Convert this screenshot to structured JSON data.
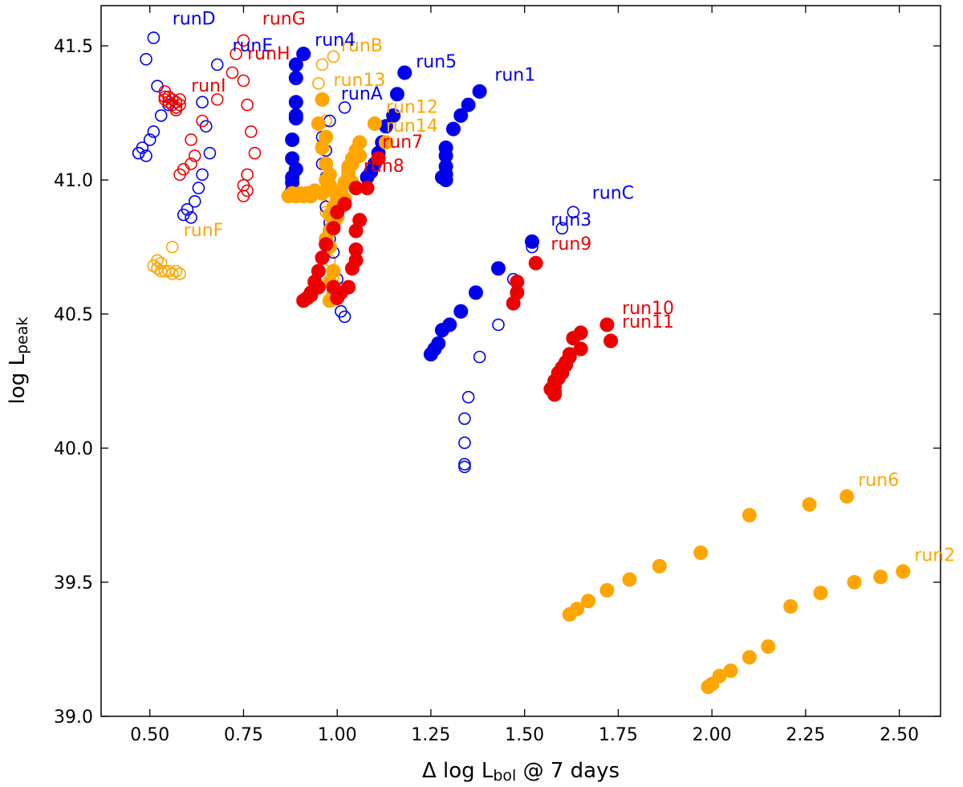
{
  "chart_data": {
    "type": "scatter",
    "title": "",
    "xlabel": {
      "prefix": "Δ log L",
      "sub": "bol",
      "suffix": " @ 7 days"
    },
    "ylabel": {
      "prefix": "log L",
      "sub": "peak"
    },
    "xlim": [
      0.37,
      2.61
    ],
    "ylim": [
      39.0,
      41.65
    ],
    "xticks": [
      "0.50",
      "0.75",
      "1.00",
      "1.25",
      "1.50",
      "1.75",
      "2.00",
      "2.25",
      "2.50"
    ],
    "yticks": [
      "39.0",
      "39.5",
      "40.0",
      "40.5",
      "41.0",
      "41.5"
    ],
    "colors": {
      "blue": "#0000ee",
      "red": "#ee0000",
      "orange": "#ffa500"
    },
    "series": [
      {
        "name": "runD",
        "color": "blue",
        "filled": false,
        "label_at": [
          0.56,
          41.58
        ],
        "x": [
          0.51,
          0.49,
          0.52,
          0.55,
          0.53,
          0.51,
          0.5,
          0.48,
          0.47,
          0.49,
          0.47
        ],
        "y": [
          41.53,
          41.45,
          41.35,
          41.28,
          41.24,
          41.18,
          41.15,
          41.12,
          41.1,
          41.09,
          41.1
        ]
      },
      {
        "name": "runE",
        "color": "blue",
        "filled": false,
        "label_at": [
          0.72,
          41.48
        ],
        "x": [
          0.68,
          0.64,
          0.65,
          0.66,
          0.64,
          0.63,
          0.62,
          0.6,
          0.59,
          0.61
        ],
        "y": [
          41.43,
          41.29,
          41.2,
          41.1,
          41.02,
          40.97,
          40.92,
          40.89,
          40.87,
          40.86
        ]
      },
      {
        "name": "runG",
        "color": "red",
        "filled": false,
        "label_at": [
          0.8,
          41.58
        ],
        "x": [
          0.75,
          0.73,
          0.72,
          0.75,
          0.76,
          0.77,
          0.78,
          0.76,
          0.75,
          0.76,
          0.75
        ],
        "y": [
          41.52,
          41.47,
          41.4,
          41.37,
          41.28,
          41.18,
          41.1,
          41.02,
          40.98,
          40.96,
          40.94
        ]
      },
      {
        "name": "runH",
        "color": "red",
        "filled": false,
        "label_at": [
          0.76,
          41.45
        ],
        "x": [
          0.68,
          0.64,
          0.61,
          0.62,
          0.61,
          0.59,
          0.58
        ],
        "y": [
          41.3,
          41.22,
          41.15,
          41.09,
          41.06,
          41.04,
          41.02
        ]
      },
      {
        "name": "runI",
        "color": "red",
        "filled": false,
        "label_at": [
          0.61,
          41.33
        ],
        "x": [
          0.54,
          0.55,
          0.54,
          0.56,
          0.57,
          0.58,
          0.58,
          0.57,
          0.56,
          0.55,
          0.54,
          0.57
        ],
        "y": [
          41.33,
          41.31,
          41.3,
          41.3,
          41.29,
          41.3,
          41.28,
          41.27,
          41.28,
          41.29,
          41.31,
          41.26
        ]
      },
      {
        "name": "runF",
        "color": "orange",
        "filled": false,
        "label_at": [
          0.59,
          40.79
        ],
        "x": [
          0.56,
          0.52,
          0.53,
          0.51,
          0.52,
          0.53,
          0.54,
          0.55,
          0.56,
          0.57,
          0.58
        ],
        "y": [
          40.75,
          40.7,
          40.69,
          40.68,
          40.67,
          40.66,
          40.66,
          40.66,
          40.65,
          40.66,
          40.65
        ]
      },
      {
        "name": "runB",
        "color": "orange",
        "filled": false,
        "label_at": [
          1.01,
          41.48
        ],
        "x": [
          0.99,
          0.96,
          0.95,
          0.96,
          0.97,
          0.96,
          0.97,
          0.97,
          0.98,
          0.97,
          0.98,
          0.97,
          0.98,
          0.99,
          1.0
        ],
        "y": [
          41.46,
          41.43,
          41.36,
          41.3,
          41.22,
          41.13,
          41.06,
          41.0,
          40.94,
          40.88,
          40.82,
          40.76,
          40.7,
          40.64,
          40.6
        ]
      },
      {
        "name": "runA",
        "color": "blue",
        "filled": false,
        "label_at": [
          1.01,
          41.3
        ],
        "x": [
          1.02,
          0.98,
          0.96,
          0.97,
          0.96,
          0.97,
          0.96,
          0.97,
          0.98,
          0.98,
          0.99,
          1.0,
          1.01,
          1.02
        ],
        "y": [
          41.27,
          41.22,
          41.16,
          41.11,
          41.06,
          41.01,
          40.95,
          40.9,
          40.84,
          40.78,
          40.73,
          40.63,
          40.51,
          40.49
        ]
      },
      {
        "name": "run4",
        "color": "blue",
        "filled": true,
        "label_at": [
          0.94,
          41.5
        ],
        "x": [
          0.91,
          0.89,
          0.89,
          0.89,
          0.89,
          0.88,
          0.88,
          0.89,
          0.88,
          0.88,
          0.88,
          0.89
        ],
        "y": [
          41.47,
          41.43,
          41.38,
          41.29,
          41.23,
          41.15,
          41.08,
          41.04,
          40.99,
          40.96,
          41.01,
          41.24
        ]
      },
      {
        "name": "run5",
        "color": "blue",
        "filled": true,
        "label_at": [
          1.21,
          41.42
        ],
        "x": [
          1.18,
          1.16,
          1.15,
          1.13,
          1.12,
          1.11,
          1.1,
          1.09,
          1.08
        ],
        "y": [
          41.4,
          41.32,
          41.24,
          41.2,
          41.14,
          41.1,
          41.06,
          41.03,
          41.01
        ]
      },
      {
        "name": "run1",
        "color": "blue",
        "filled": true,
        "label_at": [
          1.42,
          41.37
        ],
        "x": [
          1.38,
          1.35,
          1.33,
          1.31,
          1.29,
          1.29,
          1.29,
          1.29,
          1.28,
          1.29
        ],
        "y": [
          41.33,
          41.28,
          41.24,
          41.19,
          41.12,
          41.09,
          41.05,
          41.02,
          41.01,
          41.0
        ]
      },
      {
        "name": "run3",
        "color": "blue",
        "filled": true,
        "label_at": [
          1.57,
          40.83
        ],
        "x": [
          1.52,
          1.43,
          1.37,
          1.33,
          1.3,
          1.28,
          1.27,
          1.26,
          1.25
        ],
        "y": [
          40.77,
          40.67,
          40.58,
          40.51,
          40.46,
          40.44,
          40.39,
          40.37,
          40.35
        ]
      },
      {
        "name": "runC",
        "color": "blue",
        "filled": false,
        "label_at": [
          1.68,
          40.93
        ],
        "x": [
          1.63,
          1.6,
          1.52,
          1.47,
          1.43,
          1.38,
          1.35,
          1.34,
          1.34,
          1.34,
          1.34
        ],
        "y": [
          40.88,
          40.82,
          40.75,
          40.63,
          40.46,
          40.34,
          40.19,
          40.11,
          40.02,
          39.94,
          39.93
        ]
      },
      {
        "name": "run13",
        "color": "orange",
        "filled": true,
        "label_at": [
          0.99,
          41.35
        ],
        "x": [
          0.96,
          0.95,
          0.97,
          0.96,
          0.97,
          0.98,
          0.97,
          0.98,
          0.97,
          0.96,
          0.94,
          0.93,
          0.92,
          0.91,
          0.9,
          0.89,
          0.88,
          0.87
        ],
        "y": [
          41.3,
          41.21,
          41.16,
          41.12,
          41.06,
          41.02,
          41.0,
          40.98,
          40.96,
          40.95,
          40.96,
          40.94,
          40.95,
          40.94,
          40.95,
          40.94,
          40.95,
          40.94
        ]
      },
      {
        "name": "run12",
        "color": "orange",
        "filled": true,
        "label_at": [
          1.13,
          41.25
        ],
        "x": [
          1.1,
          1.06,
          1.05,
          1.04,
          1.03,
          1.03,
          1.02,
          1.01,
          1.0,
          0.99,
          0.98,
          0.99,
          0.98,
          0.97,
          0.98
        ],
        "y": [
          41.21,
          41.14,
          41.11,
          41.08,
          41.05,
          41.02,
          40.99,
          40.96,
          40.93,
          40.9,
          40.87,
          40.84,
          40.81,
          40.78,
          40.75
        ]
      },
      {
        "name": "run14",
        "color": "orange",
        "filled": true,
        "label_at": [
          1.13,
          41.18
        ],
        "x": [
          1.13,
          1.06,
          1.04,
          1.03,
          1.04,
          1.02,
          1.01,
          1.0,
          0.99,
          0.98,
          0.99,
          0.98
        ],
        "y": [
          41.14,
          41.09,
          41.06,
          41.03,
          40.99,
          40.93,
          40.9,
          40.86,
          40.66,
          40.62,
          40.58,
          40.55
        ]
      },
      {
        "name": "run7",
        "color": "red",
        "filled": true,
        "label_at": [
          1.12,
          41.12
        ],
        "x": [
          1.11,
          1.08,
          1.06,
          1.05,
          1.05,
          1.05,
          1.04,
          1.03,
          1.01,
          1.0,
          0.99
        ],
        "y": [
          41.08,
          40.97,
          40.85,
          40.81,
          40.74,
          40.7,
          40.67,
          40.6,
          40.58,
          40.56,
          40.6
        ]
      },
      {
        "name": "run8",
        "color": "red",
        "filled": true,
        "label_at": [
          1.07,
          41.03
        ],
        "x": [
          1.05,
          1.02,
          1.0,
          0.99,
          0.97,
          0.96,
          0.95,
          0.94,
          0.93,
          0.92,
          0.91,
          0.93,
          0.95
        ],
        "y": [
          40.97,
          40.91,
          40.88,
          40.82,
          40.76,
          40.71,
          40.66,
          40.62,
          40.58,
          40.56,
          40.55,
          40.57,
          40.6
        ]
      },
      {
        "name": "run9",
        "color": "red",
        "filled": true,
        "label_at": [
          1.57,
          40.74
        ],
        "x": [
          1.53,
          1.48,
          1.48,
          1.47
        ],
        "y": [
          40.69,
          40.62,
          40.58,
          40.54
        ]
      },
      {
        "name": "run10",
        "color": "red",
        "filled": true,
        "label_at": [
          1.76,
          40.5
        ],
        "x": [
          1.72,
          1.65,
          1.63,
          1.62,
          1.61,
          1.6,
          1.59,
          1.58,
          1.58
        ],
        "y": [
          40.46,
          40.43,
          40.41,
          40.35,
          40.31,
          40.28,
          40.26,
          40.23,
          40.21
        ]
      },
      {
        "name": "run11",
        "color": "red",
        "filled": true,
        "label_at": [
          1.76,
          40.45
        ],
        "x": [
          1.73,
          1.65,
          1.62,
          1.61,
          1.6,
          1.59,
          1.58,
          1.57,
          1.58
        ],
        "y": [
          40.4,
          40.37,
          40.34,
          40.32,
          40.3,
          40.28,
          40.25,
          40.22,
          40.2
        ]
      },
      {
        "name": "run6",
        "color": "orange",
        "filled": true,
        "label_at": [
          2.39,
          39.86
        ],
        "x": [
          2.36,
          2.26,
          2.1,
          1.97,
          1.86,
          1.78,
          1.72,
          1.67,
          1.64,
          1.62
        ],
        "y": [
          39.82,
          39.79,
          39.75,
          39.61,
          39.56,
          39.51,
          39.47,
          39.43,
          39.4,
          39.38
        ]
      },
      {
        "name": "run2",
        "color": "orange",
        "filled": true,
        "label_at": [
          2.54,
          39.58
        ],
        "x": [
          2.51,
          2.45,
          2.38,
          2.29,
          2.21,
          2.15,
          2.1,
          2.05,
          2.02,
          2.0,
          1.99
        ],
        "y": [
          39.54,
          39.52,
          39.5,
          39.46,
          39.41,
          39.26,
          39.22,
          39.17,
          39.15,
          39.12,
          39.11
        ]
      }
    ]
  }
}
